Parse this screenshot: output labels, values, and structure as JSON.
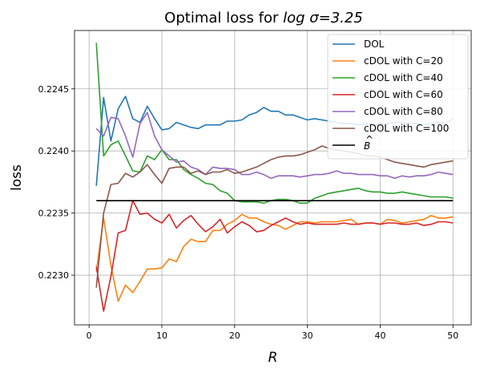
{
  "chart_data": {
    "type": "line",
    "title_prefix": "Optimal loss for ",
    "title_math": "log σ=3.25",
    "xlabel": "R",
    "ylabel": "loss",
    "xlim": [
      -2,
      52.5
    ],
    "ylim": [
      0.2226,
      0.22497
    ],
    "xticks": [
      0,
      10,
      20,
      30,
      40,
      50
    ],
    "yticks": [
      0.223,
      0.2235,
      0.224,
      0.2245
    ],
    "ytick_labels": [
      "0.2230",
      "0.2235",
      "0.2240",
      "0.2245"
    ],
    "grid": true,
    "legend_position": "top-right",
    "x": [
      1,
      2,
      3,
      4,
      5,
      6,
      7,
      8,
      9,
      10,
      11,
      12,
      13,
      14,
      15,
      16,
      17,
      18,
      19,
      20,
      21,
      22,
      23,
      24,
      25,
      26,
      27,
      28,
      29,
      30,
      31,
      32,
      33,
      34,
      35,
      36,
      37,
      38,
      39,
      40,
      41,
      42,
      43,
      44,
      45,
      46,
      47,
      48,
      49,
      50
    ],
    "series": [
      {
        "name": "DOL",
        "color": "#1f77b4",
        "values": [
          0.22372,
          0.22443,
          0.22408,
          0.22434,
          0.22444,
          0.22426,
          0.22423,
          0.22436,
          0.22426,
          0.22417,
          0.22418,
          0.22423,
          0.22421,
          0.22419,
          0.22418,
          0.22421,
          0.22421,
          0.22421,
          0.22424,
          0.22424,
          0.22425,
          0.22429,
          0.22431,
          0.22435,
          0.22432,
          0.22432,
          0.22429,
          0.22429,
          0.22427,
          0.22425,
          0.22426,
          0.22425,
          0.22424,
          0.22423,
          0.22422,
          0.22422,
          0.22421,
          0.22422,
          0.22421,
          0.22421,
          0.22422,
          0.22423,
          0.22423,
          0.22422,
          0.22422,
          0.22421,
          0.22422,
          0.22423,
          0.22422,
          0.22426
        ]
      },
      {
        "name": "cDOL with C=20",
        "color": "#ff7f0e",
        "values": [
          0.22303,
          0.22346,
          0.22308,
          0.22279,
          0.22292,
          0.22286,
          0.22295,
          0.22305,
          0.22305,
          0.22306,
          0.22313,
          0.22311,
          0.22323,
          0.22329,
          0.22327,
          0.22327,
          0.22336,
          0.22336,
          0.22341,
          0.22344,
          0.22349,
          0.22346,
          0.22346,
          0.22343,
          0.22341,
          0.2234,
          0.22337,
          0.2234,
          0.22343,
          0.22343,
          0.22342,
          0.22343,
          0.22343,
          0.22343,
          0.22344,
          0.22345,
          0.22341,
          0.22342,
          0.22342,
          0.22341,
          0.22345,
          0.22344,
          0.22342,
          0.22343,
          0.22344,
          0.22345,
          0.22348,
          0.22346,
          0.22346,
          0.22347
        ]
      },
      {
        "name": "cDOL with C=40",
        "color": "#2ca02c",
        "values": [
          0.22487,
          0.22396,
          0.22405,
          0.22408,
          0.22396,
          0.22384,
          0.22383,
          0.22396,
          0.22393,
          0.22401,
          0.22393,
          0.22393,
          0.22385,
          0.22381,
          0.22378,
          0.22374,
          0.22373,
          0.22368,
          0.22366,
          0.2236,
          0.22359,
          0.22359,
          0.22359,
          0.22358,
          0.2236,
          0.22361,
          0.22361,
          0.2236,
          0.22358,
          0.22358,
          0.22362,
          0.22364,
          0.22366,
          0.22367,
          0.22368,
          0.22369,
          0.2237,
          0.22368,
          0.22367,
          0.22367,
          0.22366,
          0.22366,
          0.22367,
          0.22366,
          0.22365,
          0.22364,
          0.22363,
          0.22363,
          0.22363,
          0.22362
        ]
      },
      {
        "name": "cDOL with C=60",
        "color": "#d62728",
        "values": [
          0.22307,
          0.22271,
          0.22299,
          0.22334,
          0.22336,
          0.2236,
          0.22349,
          0.2235,
          0.22345,
          0.22342,
          0.22349,
          0.22338,
          0.22344,
          0.22348,
          0.22341,
          0.22335,
          0.22339,
          0.22345,
          0.22334,
          0.22339,
          0.22343,
          0.2234,
          0.22335,
          0.22336,
          0.2234,
          0.22343,
          0.22346,
          0.22343,
          0.22341,
          0.22342,
          0.22341,
          0.22341,
          0.22341,
          0.22341,
          0.22342,
          0.22341,
          0.22341,
          0.22342,
          0.22342,
          0.22341,
          0.22342,
          0.22342,
          0.22341,
          0.22341,
          0.22342,
          0.2234,
          0.22341,
          0.22343,
          0.22343,
          0.22342
        ]
      },
      {
        "name": "cDOL with C=80",
        "color": "#9467bd",
        "values": [
          0.22418,
          0.22412,
          0.22427,
          0.22426,
          0.22412,
          0.22395,
          0.22422,
          0.22431,
          0.22412,
          0.22401,
          0.22396,
          0.22391,
          0.22392,
          0.22387,
          0.22385,
          0.22381,
          0.22387,
          0.22386,
          0.22386,
          0.22385,
          0.22381,
          0.22381,
          0.22383,
          0.22381,
          0.22378,
          0.2238,
          0.2238,
          0.2238,
          0.22379,
          0.2238,
          0.22381,
          0.22381,
          0.22382,
          0.22384,
          0.22382,
          0.22382,
          0.22381,
          0.22381,
          0.22381,
          0.2238,
          0.2238,
          0.22378,
          0.2238,
          0.22379,
          0.2238,
          0.2238,
          0.22381,
          0.22383,
          0.22382,
          0.22381
        ]
      },
      {
        "name": "cDOL with C=100",
        "color": "#8c564b",
        "values": [
          0.2229,
          0.2235,
          0.22373,
          0.22374,
          0.22382,
          0.22379,
          0.22383,
          0.22389,
          0.22381,
          0.22374,
          0.22386,
          0.22387,
          0.22387,
          0.22382,
          0.22384,
          0.22381,
          0.22383,
          0.22383,
          0.22385,
          0.22382,
          0.22383,
          0.22385,
          0.22387,
          0.2239,
          0.22393,
          0.22395,
          0.22396,
          0.22396,
          0.22397,
          0.22399,
          0.22401,
          0.22404,
          0.22402,
          0.22401,
          0.224,
          0.22399,
          0.22398,
          0.22396,
          0.22396,
          0.22395,
          0.22393,
          0.22391,
          0.2239,
          0.22389,
          0.22388,
          0.22387,
          0.22389,
          0.2239,
          0.22391,
          0.22392
        ]
      }
    ],
    "reference_line": {
      "name": "B̂",
      "legend_base": "B",
      "legend_hat": "^",
      "color": "#000000",
      "value": 0.2236,
      "x_range": [
        1,
        50
      ]
    }
  }
}
